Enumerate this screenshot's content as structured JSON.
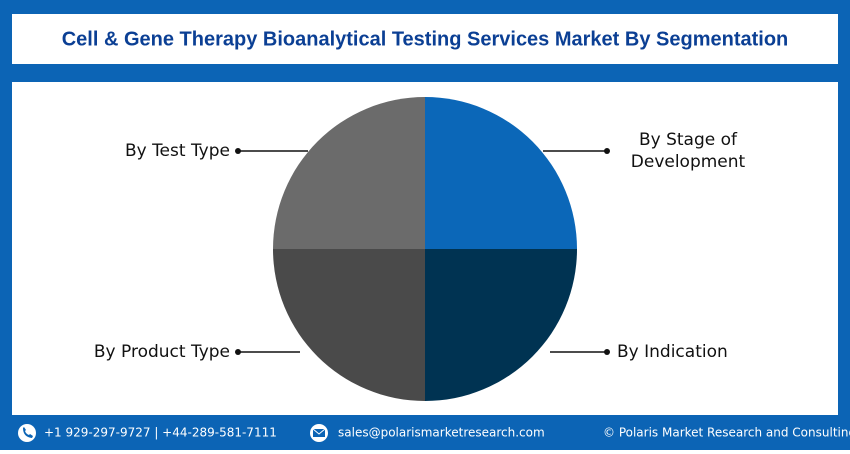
{
  "header": {
    "title": "Cell & Gene Therapy Bioanalytical Testing Services Market By Segmentation"
  },
  "segments": [
    {
      "label": [
        "By Test Type"
      ]
    },
    {
      "label": [
        "By Stage of",
        "Development"
      ]
    },
    {
      "label": [
        "By Product Type"
      ]
    },
    {
      "label": [
        "By Indication"
      ]
    }
  ],
  "footer": {
    "phone": "+1 929-297-9727 | +44-289-581-7111",
    "email": "sales@polarismarketresearch.com",
    "copyright": "© Polaris Market Research and Consulting LLP"
  }
}
